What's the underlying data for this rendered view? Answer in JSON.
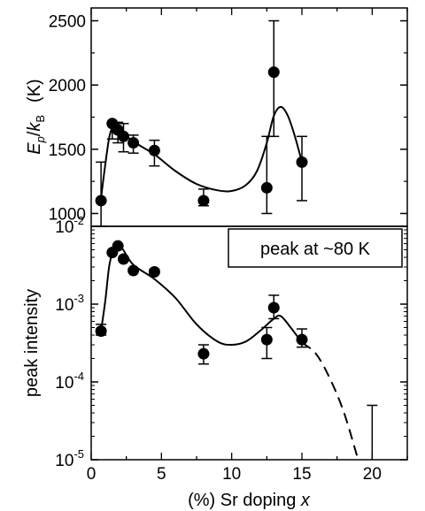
{
  "chart_data": [
    {
      "type": "scatter",
      "panel": "top",
      "ylabel": {
        "E": "E",
        "p": "p",
        "slash": "/",
        "k": "k",
        "B": "B",
        "unit": "(K)"
      },
      "ylim": [
        900,
        2600
      ],
      "yticks": [
        1000,
        1500,
        2000,
        2500
      ],
      "xlim": [
        0,
        22.5
      ],
      "series": [
        {
          "points": [
            {
              "x": 0.7,
              "y": 1100,
              "err_lo": 200,
              "err_hi": 300
            },
            {
              "x": 1.5,
              "y": 1700,
              "err_lo": 120,
              "err_hi": 0
            },
            {
              "x": 1.9,
              "y": 1650,
              "err_lo": 100,
              "err_hi": 60
            },
            {
              "x": 2.3,
              "y": 1600,
              "err_lo": 120,
              "err_hi": 100
            },
            {
              "x": 3.0,
              "y": 1550,
              "err_lo": 80,
              "err_hi": 60
            },
            {
              "x": 4.5,
              "y": 1490,
              "err_lo": 120,
              "err_hi": 80
            },
            {
              "x": 8.0,
              "y": 1100,
              "err_lo": 40,
              "err_hi": 90
            },
            {
              "x": 12.5,
              "y": 1200,
              "err_lo": 200,
              "err_hi": 400
            },
            {
              "x": 13.0,
              "y": 2100,
              "err_lo": 500,
              "err_hi": 400
            },
            {
              "x": 15.0,
              "y": 1400,
              "err_lo": 300,
              "err_hi": 200
            }
          ],
          "fit": [
            [
              0.7,
              1120
            ],
            [
              1.0,
              1380
            ],
            [
              1.3,
              1600
            ],
            [
              1.6,
              1680
            ],
            [
              2.0,
              1650
            ],
            [
              3.0,
              1560
            ],
            [
              4.5,
              1460
            ],
            [
              6.0,
              1330
            ],
            [
              7.5,
              1230
            ],
            [
              9.0,
              1180
            ],
            [
              10.0,
              1175
            ],
            [
              11.0,
              1220
            ],
            [
              11.8,
              1330
            ],
            [
              12.5,
              1550
            ],
            [
              13.0,
              1760
            ],
            [
              13.5,
              1830
            ],
            [
              14.0,
              1760
            ],
            [
              14.5,
              1600
            ],
            [
              15.0,
              1400
            ]
          ]
        }
      ]
    },
    {
      "type": "scatter",
      "panel": "bottom",
      "ylabel": "peak intensity",
      "yscale": "log",
      "ylim": [
        1e-05,
        0.01
      ],
      "yticks": [
        {
          "value": 1e-05,
          "base": "10",
          "exp": "-5"
        },
        {
          "value": 0.0001,
          "base": "10",
          "exp": "-4"
        },
        {
          "value": 0.001,
          "base": "10",
          "exp": "-3"
        },
        {
          "value": 0.01,
          "base": "10",
          "exp": "-2"
        }
      ],
      "xlabel": {
        "text": "(%) Sr doping ",
        "var": "x"
      },
      "xlim": [
        0,
        22.5
      ],
      "xticks": [
        0,
        5,
        10,
        15,
        20
      ],
      "annotation": "peak at ~80 K",
      "series": [
        {
          "points": [
            {
              "x": 0.7,
              "y": 0.00045,
              "y_lo": 0.0004,
              "y_hi": 0.00055
            },
            {
              "x": 1.5,
              "y": 0.0046,
              "y_lo": 0.0044,
              "y_hi": 0.0048
            },
            {
              "x": 1.9,
              "y": 0.0056,
              "y_lo": 0.0054,
              "y_hi": 0.0058
            },
            {
              "x": 2.3,
              "y": 0.0038,
              "y_lo": 0.0036,
              "y_hi": 0.004
            },
            {
              "x": 3.0,
              "y": 0.0027,
              "y_lo": 0.0026,
              "y_hi": 0.0028
            },
            {
              "x": 4.5,
              "y": 0.0026,
              "y_lo": 0.0025,
              "y_hi": 0.0028
            },
            {
              "x": 8.0,
              "y": 0.00023,
              "y_lo": 0.00017,
              "y_hi": 0.0003
            },
            {
              "x": 12.5,
              "y": 0.00035,
              "y_lo": 0.0002,
              "y_hi": 0.0005
            },
            {
              "x": 13.0,
              "y": 0.0009,
              "y_lo": 0.00065,
              "y_hi": 0.0013
            },
            {
              "x": 15.0,
              "y": 0.00035,
              "y_lo": 0.00028,
              "y_hi": 0.00048
            },
            {
              "x": 20.0,
              "y": null,
              "y_lo": 1e-05,
              "y_hi": 5e-05
            }
          ],
          "fit": [
            [
              0.7,
              0.00045
            ],
            [
              1.0,
              0.0011
            ],
            [
              1.3,
              0.0032
            ],
            [
              1.7,
              0.0056
            ],
            [
              2.2,
              0.0052
            ],
            [
              3.0,
              0.0032
            ],
            [
              4.5,
              0.0021
            ],
            [
              6.0,
              0.0012
            ],
            [
              7.5,
              0.00055
            ],
            [
              9.0,
              0.00033
            ],
            [
              10.0,
              0.0003
            ],
            [
              11.0,
              0.00033
            ],
            [
              12.0,
              0.00045
            ],
            [
              13.0,
              0.00065
            ],
            [
              13.5,
              0.0007
            ],
            [
              14.2,
              0.0005
            ],
            [
              15.0,
              0.00032
            ]
          ],
          "extrapolation": [
            [
              15.0,
              0.00032
            ],
            [
              16.0,
              0.00023
            ],
            [
              17.0,
              0.00011
            ],
            [
              18.0,
              4e-05
            ],
            [
              19.0,
              1e-05
            ]
          ]
        }
      ]
    }
  ]
}
